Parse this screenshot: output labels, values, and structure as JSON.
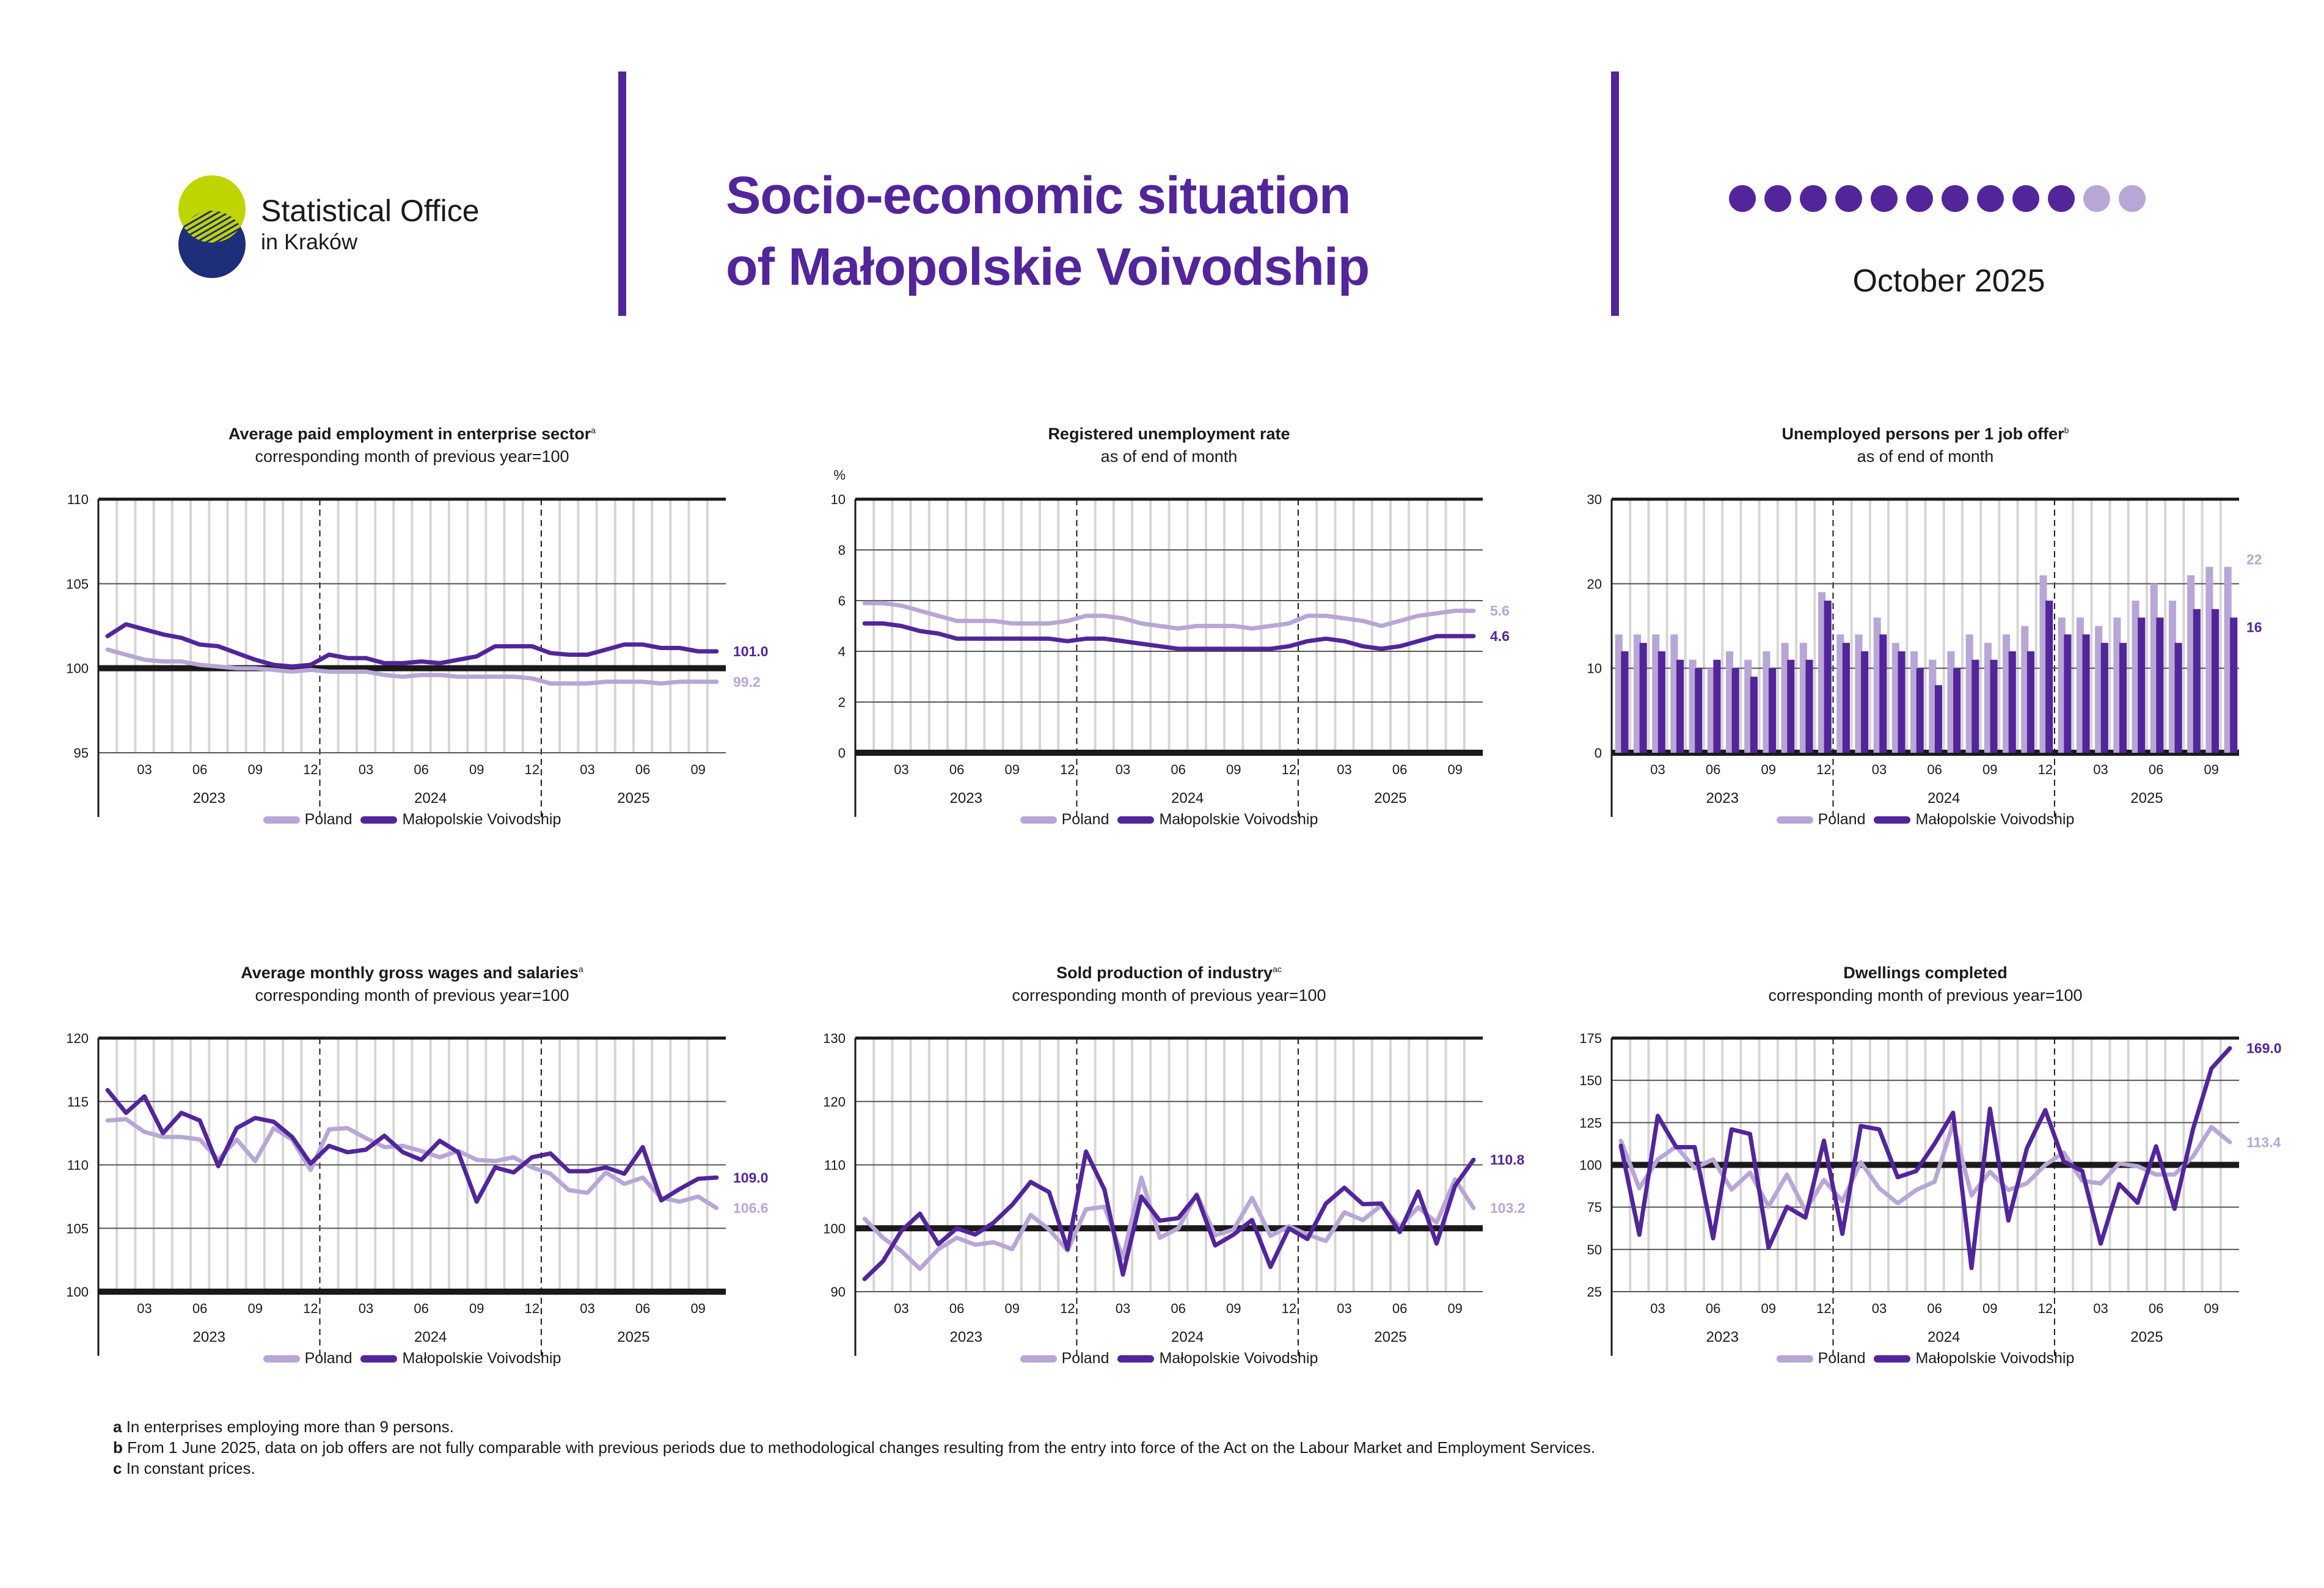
{
  "header": {
    "logo_line1": "Statistical Office",
    "logo_line2": "in Kraków",
    "title_line1": "Socio-economic situation",
    "title_line2": "of Małopolskie Voivodship",
    "date": "October 2025",
    "progress": {
      "filled": 10,
      "total": 12
    },
    "colors": {
      "accent": "#52259a",
      "accent_light": "#b8a6d6",
      "logo_lime": "#c0d400",
      "logo_navy": "#1f2e78"
    }
  },
  "legend": {
    "poland": "Poland",
    "region": "Małopolskie Voivodship"
  },
  "chart_data": [
    {
      "type": "line",
      "title": "Average paid employment in enterprise sector",
      "title_note": "a",
      "subtitle": "corresponding month of previous year=100",
      "y_unit": "",
      "ylim": [
        95,
        110
      ],
      "yticks": [
        95,
        100,
        105,
        110
      ],
      "baseline": 100,
      "grid": true,
      "x": [
        "2023-01",
        "2023-02",
        "2023-03",
        "2023-04",
        "2023-05",
        "2023-06",
        "2023-07",
        "2023-08",
        "2023-09",
        "2023-10",
        "2023-11",
        "2023-12",
        "2024-01",
        "2024-02",
        "2024-03",
        "2024-04",
        "2024-05",
        "2024-06",
        "2024-07",
        "2024-08",
        "2024-09",
        "2024-10",
        "2024-11",
        "2024-12",
        "2025-01",
        "2025-02",
        "2025-03",
        "2025-04",
        "2025-05",
        "2025-06",
        "2025-07",
        "2025-08",
        "2025-09",
        "2025-10"
      ],
      "x_ticks": [
        "03",
        "06",
        "09",
        "12",
        "03",
        "06",
        "09",
        "12",
        "03",
        "06",
        "09"
      ],
      "years": [
        "2023",
        "2024",
        "2025"
      ],
      "series": [
        {
          "name": "Poland",
          "color": "#b8a6d6",
          "end_label": "99.2",
          "values": [
            101.1,
            100.8,
            100.5,
            100.4,
            100.4,
            100.2,
            100.1,
            100.0,
            100.0,
            99.9,
            99.8,
            99.9,
            99.8,
            99.8,
            99.8,
            99.6,
            99.5,
            99.6,
            99.6,
            99.5,
            99.5,
            99.5,
            99.5,
            99.4,
            99.1,
            99.1,
            99.1,
            99.2,
            99.2,
            99.2,
            99.1,
            99.2,
            99.2,
            99.2
          ]
        },
        {
          "name": "Małopolskie Voivodship",
          "color": "#52259a",
          "end_label": "101.0",
          "values": [
            101.9,
            102.6,
            102.3,
            102.0,
            101.8,
            101.4,
            101.3,
            100.9,
            100.5,
            100.2,
            100.1,
            100.2,
            100.8,
            100.6,
            100.6,
            100.3,
            100.3,
            100.4,
            100.3,
            100.5,
            100.7,
            101.3,
            101.3,
            101.3,
            100.9,
            100.8,
            100.8,
            101.1,
            101.4,
            101.4,
            101.2,
            101.2,
            101.0,
            101.0
          ]
        }
      ]
    },
    {
      "type": "line",
      "title": "Registered unemployment rate",
      "title_note": "",
      "subtitle": "as of end of month",
      "y_unit": "%",
      "ylim": [
        0,
        10
      ],
      "yticks": [
        0,
        2,
        4,
        6,
        8,
        10
      ],
      "baseline": 0,
      "grid": true,
      "x": [
        "2023-01",
        "2023-02",
        "2023-03",
        "2023-04",
        "2023-05",
        "2023-06",
        "2023-07",
        "2023-08",
        "2023-09",
        "2023-10",
        "2023-11",
        "2023-12",
        "2024-01",
        "2024-02",
        "2024-03",
        "2024-04",
        "2024-05",
        "2024-06",
        "2024-07",
        "2024-08",
        "2024-09",
        "2024-10",
        "2024-11",
        "2024-12",
        "2025-01",
        "2025-02",
        "2025-03",
        "2025-04",
        "2025-05",
        "2025-06",
        "2025-07",
        "2025-08",
        "2025-09",
        "2025-10"
      ],
      "x_ticks": [
        "03",
        "06",
        "09",
        "12",
        "03",
        "06",
        "09",
        "12",
        "03",
        "06",
        "09"
      ],
      "years": [
        "2023",
        "2024",
        "2025"
      ],
      "series": [
        {
          "name": "Poland",
          "color": "#b8a6d6",
          "end_label": "5.6",
          "values": [
            5.9,
            5.9,
            5.8,
            5.6,
            5.4,
            5.2,
            5.2,
            5.2,
            5.1,
            5.1,
            5.1,
            5.2,
            5.4,
            5.4,
            5.3,
            5.1,
            5.0,
            4.9,
            5.0,
            5.0,
            5.0,
            4.9,
            5.0,
            5.1,
            5.4,
            5.4,
            5.3,
            5.2,
            5.0,
            5.2,
            5.4,
            5.5,
            5.6,
            5.6
          ]
        },
        {
          "name": "Małopolskie Voivodship",
          "color": "#52259a",
          "end_label": "4.6",
          "values": [
            5.1,
            5.1,
            5.0,
            4.8,
            4.7,
            4.5,
            4.5,
            4.5,
            4.5,
            4.5,
            4.5,
            4.4,
            4.5,
            4.5,
            4.4,
            4.3,
            4.2,
            4.1,
            4.1,
            4.1,
            4.1,
            4.1,
            4.1,
            4.2,
            4.4,
            4.5,
            4.4,
            4.2,
            4.1,
            4.2,
            4.4,
            4.6,
            4.6,
            4.6
          ]
        }
      ]
    },
    {
      "type": "bar",
      "title": "Unemployed persons per 1 job offer",
      "title_note": "b",
      "subtitle": "as of end of month",
      "y_unit": "",
      "ylim": [
        0,
        30
      ],
      "yticks": [
        0,
        10,
        20,
        30
      ],
      "baseline": 0,
      "grid": true,
      "x": [
        "2023-01",
        "2023-02",
        "2023-03",
        "2023-04",
        "2023-05",
        "2023-06",
        "2023-07",
        "2023-08",
        "2023-09",
        "2023-10",
        "2023-11",
        "2023-12",
        "2024-01",
        "2024-02",
        "2024-03",
        "2024-04",
        "2024-05",
        "2024-06",
        "2024-07",
        "2024-08",
        "2024-09",
        "2024-10",
        "2024-11",
        "2024-12",
        "2025-01",
        "2025-02",
        "2025-03",
        "2025-04",
        "2025-05",
        "2025-06",
        "2025-07",
        "2025-08",
        "2025-09",
        "2025-10"
      ],
      "x_ticks": [
        "03",
        "06",
        "09",
        "12",
        "03",
        "06",
        "09",
        "12",
        "03",
        "06",
        "09"
      ],
      "years": [
        "2023",
        "2024",
        "2025"
      ],
      "series": [
        {
          "name": "Poland",
          "color": "#b8a6d6",
          "end_label": "22",
          "values": [
            14,
            14,
            14,
            14,
            11,
            10,
            12,
            11,
            12,
            13,
            13,
            19,
            14,
            14,
            16,
            13,
            12,
            11,
            12,
            14,
            13,
            14,
            15,
            21,
            16,
            16,
            15,
            16,
            18,
            20,
            18,
            21,
            22,
            22
          ]
        },
        {
          "name": "Małopolskie Voivodship",
          "color": "#52259a",
          "end_label": "16",
          "values": [
            12,
            13,
            12,
            11,
            10,
            11,
            10,
            9,
            10,
            11,
            11,
            18,
            13,
            12,
            14,
            12,
            10,
            8,
            10,
            11,
            11,
            12,
            12,
            18,
            14,
            14,
            13,
            13,
            16,
            16,
            13,
            17,
            17,
            16
          ]
        }
      ]
    },
    {
      "type": "line",
      "title": "Average monthly gross wages and salaries",
      "title_note": "a",
      "subtitle": "corresponding month of previous year=100",
      "y_unit": "",
      "ylim": [
        100,
        120
      ],
      "yticks": [
        100,
        105,
        110,
        115,
        120
      ],
      "baseline": 100,
      "grid": true,
      "x": [
        "2023-01",
        "2023-02",
        "2023-03",
        "2023-04",
        "2023-05",
        "2023-06",
        "2023-07",
        "2023-08",
        "2023-09",
        "2023-10",
        "2023-11",
        "2023-12",
        "2024-01",
        "2024-02",
        "2024-03",
        "2024-04",
        "2024-05",
        "2024-06",
        "2024-07",
        "2024-08",
        "2024-09",
        "2024-10",
        "2024-11",
        "2024-12",
        "2025-01",
        "2025-02",
        "2025-03",
        "2025-04",
        "2025-05",
        "2025-06",
        "2025-07",
        "2025-08",
        "2025-09",
        "2025-10"
      ],
      "x_ticks": [
        "03",
        "06",
        "09",
        "12",
        "03",
        "06",
        "09",
        "12",
        "03",
        "06",
        "09"
      ],
      "years": [
        "2023",
        "2024",
        "2025"
      ],
      "series": [
        {
          "name": "Poland",
          "color": "#b8a6d6",
          "end_label": "106.6",
          "values": [
            113.5,
            113.6,
            112.6,
            112.2,
            112.2,
            112.0,
            110.4,
            112.0,
            110.3,
            112.9,
            112.0,
            109.6,
            112.8,
            112.9,
            112.1,
            111.4,
            111.5,
            111.1,
            110.6,
            111.1,
            110.4,
            110.3,
            110.6,
            109.8,
            109.3,
            108.0,
            107.8,
            109.4,
            108.5,
            109.0,
            107.4,
            107.1,
            107.5,
            106.6
          ]
        },
        {
          "name": "Małopolskie Voivodship",
          "color": "#52259a",
          "end_label": "109.0",
          "values": [
            115.9,
            114.1,
            115.4,
            112.5,
            114.1,
            113.5,
            109.9,
            112.9,
            113.7,
            113.4,
            112.2,
            110.1,
            111.5,
            111.0,
            111.2,
            112.3,
            111.0,
            110.4,
            111.9,
            111.0,
            107.1,
            109.8,
            109.4,
            110.6,
            110.9,
            109.5,
            109.5,
            109.8,
            109.3,
            111.4,
            107.2,
            108.1,
            108.9,
            109.0
          ]
        }
      ]
    },
    {
      "type": "line",
      "title": "Sold production of industry",
      "title_note": "ac",
      "subtitle": "corresponding month of previous year=100",
      "y_unit": "",
      "ylim": [
        90,
        130
      ],
      "yticks": [
        90,
        100,
        110,
        120,
        130
      ],
      "baseline": 100,
      "grid": true,
      "x": [
        "2023-01",
        "2023-02",
        "2023-03",
        "2023-04",
        "2023-05",
        "2023-06",
        "2023-07",
        "2023-08",
        "2023-09",
        "2023-10",
        "2023-11",
        "2023-12",
        "2024-01",
        "2024-02",
        "2024-03",
        "2024-04",
        "2024-05",
        "2024-06",
        "2024-07",
        "2024-08",
        "2024-09",
        "2024-10",
        "2024-11",
        "2024-12",
        "2025-01",
        "2025-02",
        "2025-03",
        "2025-04",
        "2025-05",
        "2025-06",
        "2025-07",
        "2025-08",
        "2025-09",
        "2025-10"
      ],
      "x_ticks": [
        "03",
        "06",
        "09",
        "12",
        "03",
        "06",
        "09",
        "12",
        "03",
        "06",
        "09"
      ],
      "years": [
        "2023",
        "2024",
        "2025"
      ],
      "series": [
        {
          "name": "Poland",
          "color": "#b8a6d6",
          "end_label": "103.2",
          "values": [
            101.5,
            98.5,
            96.4,
            93.6,
            96.7,
            98.5,
            97.4,
            97.8,
            96.7,
            102.1,
            99.8,
            96.5,
            103.0,
            103.4,
            95.3,
            108.0,
            98.5,
            100.0,
            105.4,
            98.9,
            99.8,
            104.8,
            98.8,
            100.3,
            99.0,
            98.0,
            102.5,
            101.3,
            103.6,
            100.2,
            103.3,
            100.9,
            107.7,
            103.2
          ]
        },
        {
          "name": "Małopolskie Voivodship",
          "color": "#52259a",
          "end_label": "110.8",
          "values": [
            92.0,
            94.8,
            99.6,
            102.3,
            97.5,
            100.0,
            99.0,
            100.9,
            103.7,
            107.3,
            105.7,
            96.7,
            112.1,
            106.1,
            92.7,
            105.0,
            101.2,
            101.6,
            105.2,
            97.3,
            99.0,
            101.3,
            93.9,
            100.0,
            98.3,
            103.9,
            106.4,
            103.8,
            103.9,
            99.4,
            105.8,
            97.6,
            106.7,
            110.8
          ]
        }
      ]
    },
    {
      "type": "line",
      "title": "Dwellings completed",
      "title_note": "",
      "subtitle": "corresponding month of previous year=100",
      "y_unit": "",
      "ylim": [
        25,
        175
      ],
      "yticks": [
        25,
        50,
        75,
        100,
        125,
        150,
        175
      ],
      "baseline": 100,
      "grid": true,
      "x": [
        "2023-01",
        "2023-02",
        "2023-03",
        "2023-04",
        "2023-05",
        "2023-06",
        "2023-07",
        "2023-08",
        "2023-09",
        "2023-10",
        "2023-11",
        "2023-12",
        "2024-01",
        "2024-02",
        "2024-03",
        "2024-04",
        "2024-05",
        "2024-06",
        "2024-07",
        "2024-08",
        "2024-09",
        "2024-10",
        "2024-11",
        "2024-12",
        "2025-01",
        "2025-02",
        "2025-03",
        "2025-04",
        "2025-05",
        "2025-06",
        "2025-07",
        "2025-08",
        "2025-09",
        "2025-10"
      ],
      "x_ticks": [
        "03",
        "06",
        "09",
        "12",
        "03",
        "06",
        "09",
        "12",
        "03",
        "06",
        "09"
      ],
      "years": [
        "2023",
        "2024",
        "2025"
      ],
      "series": [
        {
          "name": "Poland",
          "color": "#b8a6d6",
          "end_label": "113.4",
          "values": [
            114.3,
            86.2,
            103.2,
            110.9,
            98.1,
            103.2,
            85.4,
            95.5,
            75.4,
            94.3,
            72.8,
            91.1,
            78.6,
            101.6,
            86.2,
            77.3,
            85.1,
            90.1,
            124.3,
            82.0,
            96.0,
            85.1,
            89.1,
            100.0,
            107.3,
            90.6,
            89.0,
            100.8,
            99.2,
            94.3,
            94.3,
            104.9,
            122.4,
            113.4
          ]
        },
        {
          "name": "Małopolskie Voivodship",
          "color": "#52259a",
          "end_label": "169.0",
          "values": [
            111.3,
            58.7,
            129.0,
            110.5,
            110.5,
            56.6,
            121.0,
            118.3,
            51.0,
            75.2,
            68.8,
            114.3,
            59.2,
            123.0,
            121.0,
            92.7,
            96.3,
            112.5,
            130.8,
            39.0,
            133.2,
            67.1,
            109.7,
            132.4,
            102.0,
            96.4,
            53.4,
            88.6,
            77.6,
            111.0,
            74.0,
            121.0,
            157.0,
            169.0
          ]
        }
      ]
    }
  ],
  "footnotes": [
    {
      "letter": "a",
      "text": "In enterprises employing more than 9 persons."
    },
    {
      "letter": "b",
      "text": "From 1 June 2025, data on job offers are not fully comparable with previous periods due to methodological changes resulting from the entry into force of the Act on the Labour Market and Employment Services."
    },
    {
      "letter": "c",
      "text": "In constant prices."
    }
  ]
}
